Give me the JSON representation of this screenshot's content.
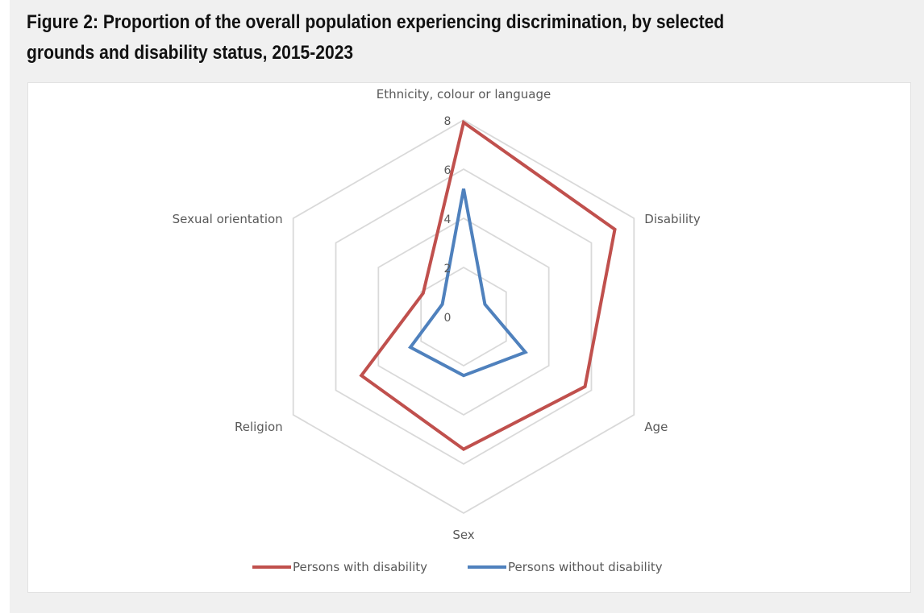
{
  "figure": {
    "title": "Figure 2: Proportion of the overall population experiencing discrimination, by selected grounds and disability status, 2015-2023"
  },
  "chart_data": {
    "type": "radar",
    "categories": [
      "Ethnicity, colour or language",
      "Disability",
      "Age",
      "Sex",
      "Religion",
      "Sexual orientation"
    ],
    "rlim": [
      0,
      8
    ],
    "ticks": [
      0,
      2,
      4,
      6,
      8
    ],
    "series": [
      {
        "name": "Persons with disability",
        "color": "#c0504d",
        "values": [
          7.9,
          7.1,
          5.7,
          5.4,
          4.8,
          1.9
        ]
      },
      {
        "name": "Persons without disability",
        "color": "#4f81bd",
        "values": [
          5.2,
          1.0,
          2.9,
          2.4,
          2.5,
          1.0
        ]
      }
    ],
    "grid": true,
    "legend_position": "bottom"
  }
}
